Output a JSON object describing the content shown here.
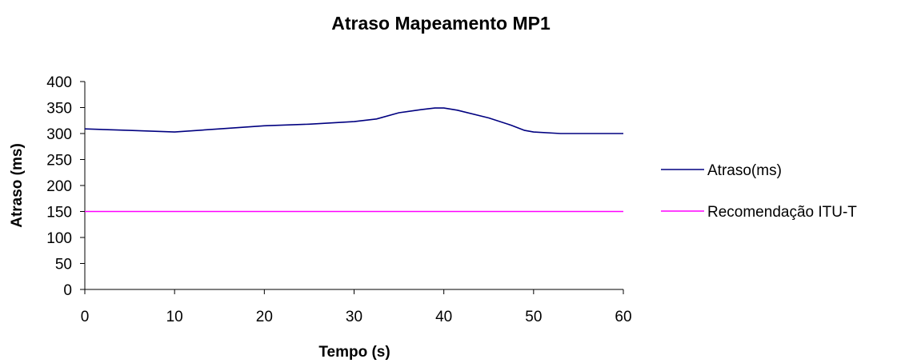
{
  "chart_data": {
    "type": "line",
    "title": "Atraso Mapeamento MP1",
    "xlabel": "Tempo (s)",
    "ylabel": "Atraso (ms)",
    "xlim": [
      0,
      60
    ],
    "ylim": [
      0,
      400
    ],
    "x_ticks": [
      "0",
      "10",
      "20",
      "30",
      "40",
      "50",
      "60"
    ],
    "y_ticks": [
      "0",
      "50",
      "100",
      "150",
      "200",
      "250",
      "300",
      "350",
      "400"
    ],
    "grid": false,
    "legend_position": "right",
    "series": [
      {
        "name": "Atraso(ms)",
        "color": "#000080",
        "points": [
          [
            0,
            309
          ],
          [
            5,
            306
          ],
          [
            10,
            303
          ],
          [
            15,
            309
          ],
          [
            20,
            315
          ],
          [
            25,
            318
          ],
          [
            30,
            323
          ],
          [
            32.5,
            328
          ],
          [
            35,
            340
          ],
          [
            37.5,
            346
          ],
          [
            39,
            349
          ],
          [
            40,
            349
          ],
          [
            41.5,
            345
          ],
          [
            45,
            330
          ],
          [
            47.5,
            316
          ],
          [
            49,
            306
          ],
          [
            50,
            303
          ],
          [
            53,
            300
          ],
          [
            57,
            300
          ],
          [
            60,
            300
          ]
        ]
      },
      {
        "name": "Recomendação ITU-T",
        "color": "#FF00FF",
        "points": [
          [
            0,
            150
          ],
          [
            60,
            150
          ]
        ]
      }
    ]
  }
}
